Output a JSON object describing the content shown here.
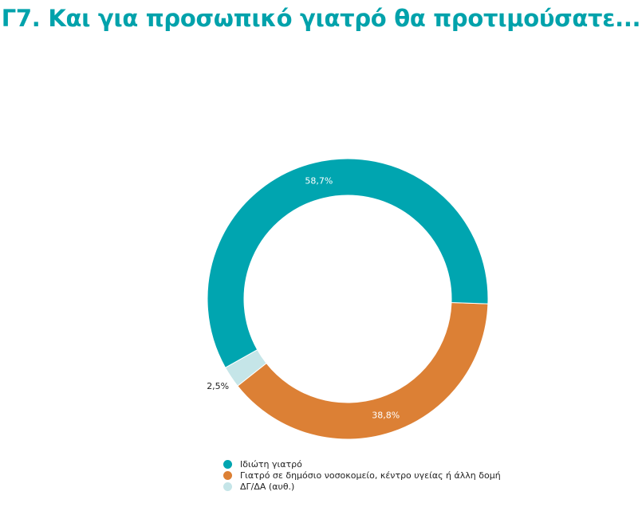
{
  "chart_data": {
    "type": "pie",
    "variant": "donut",
    "title": "Γ7. Και για προσωπικό γιατρό θα προτιμούσατε...",
    "slices": [
      {
        "label": "Ιδιώτη γιατρό",
        "value": 58.7,
        "display": "58,7%",
        "color": "#00a5b0",
        "label_color": "#ffffff",
        "label_position": "inside"
      },
      {
        "label": "Γιατρό σε δημόσιο νοσοκομείο, κέντρο υγείας ή άλλη δομή",
        "value": 38.8,
        "display": "38,8%",
        "color": "#dc8035",
        "label_color": "#ffffff",
        "label_position": "inside"
      },
      {
        "label": "ΔΓ/ΔΑ (αυθ.)",
        "value": 2.5,
        "display": "2,5%",
        "color": "#c5e5e8",
        "label_color": "#222222",
        "label_position": "outside"
      }
    ],
    "legend_placement": "bottom"
  }
}
